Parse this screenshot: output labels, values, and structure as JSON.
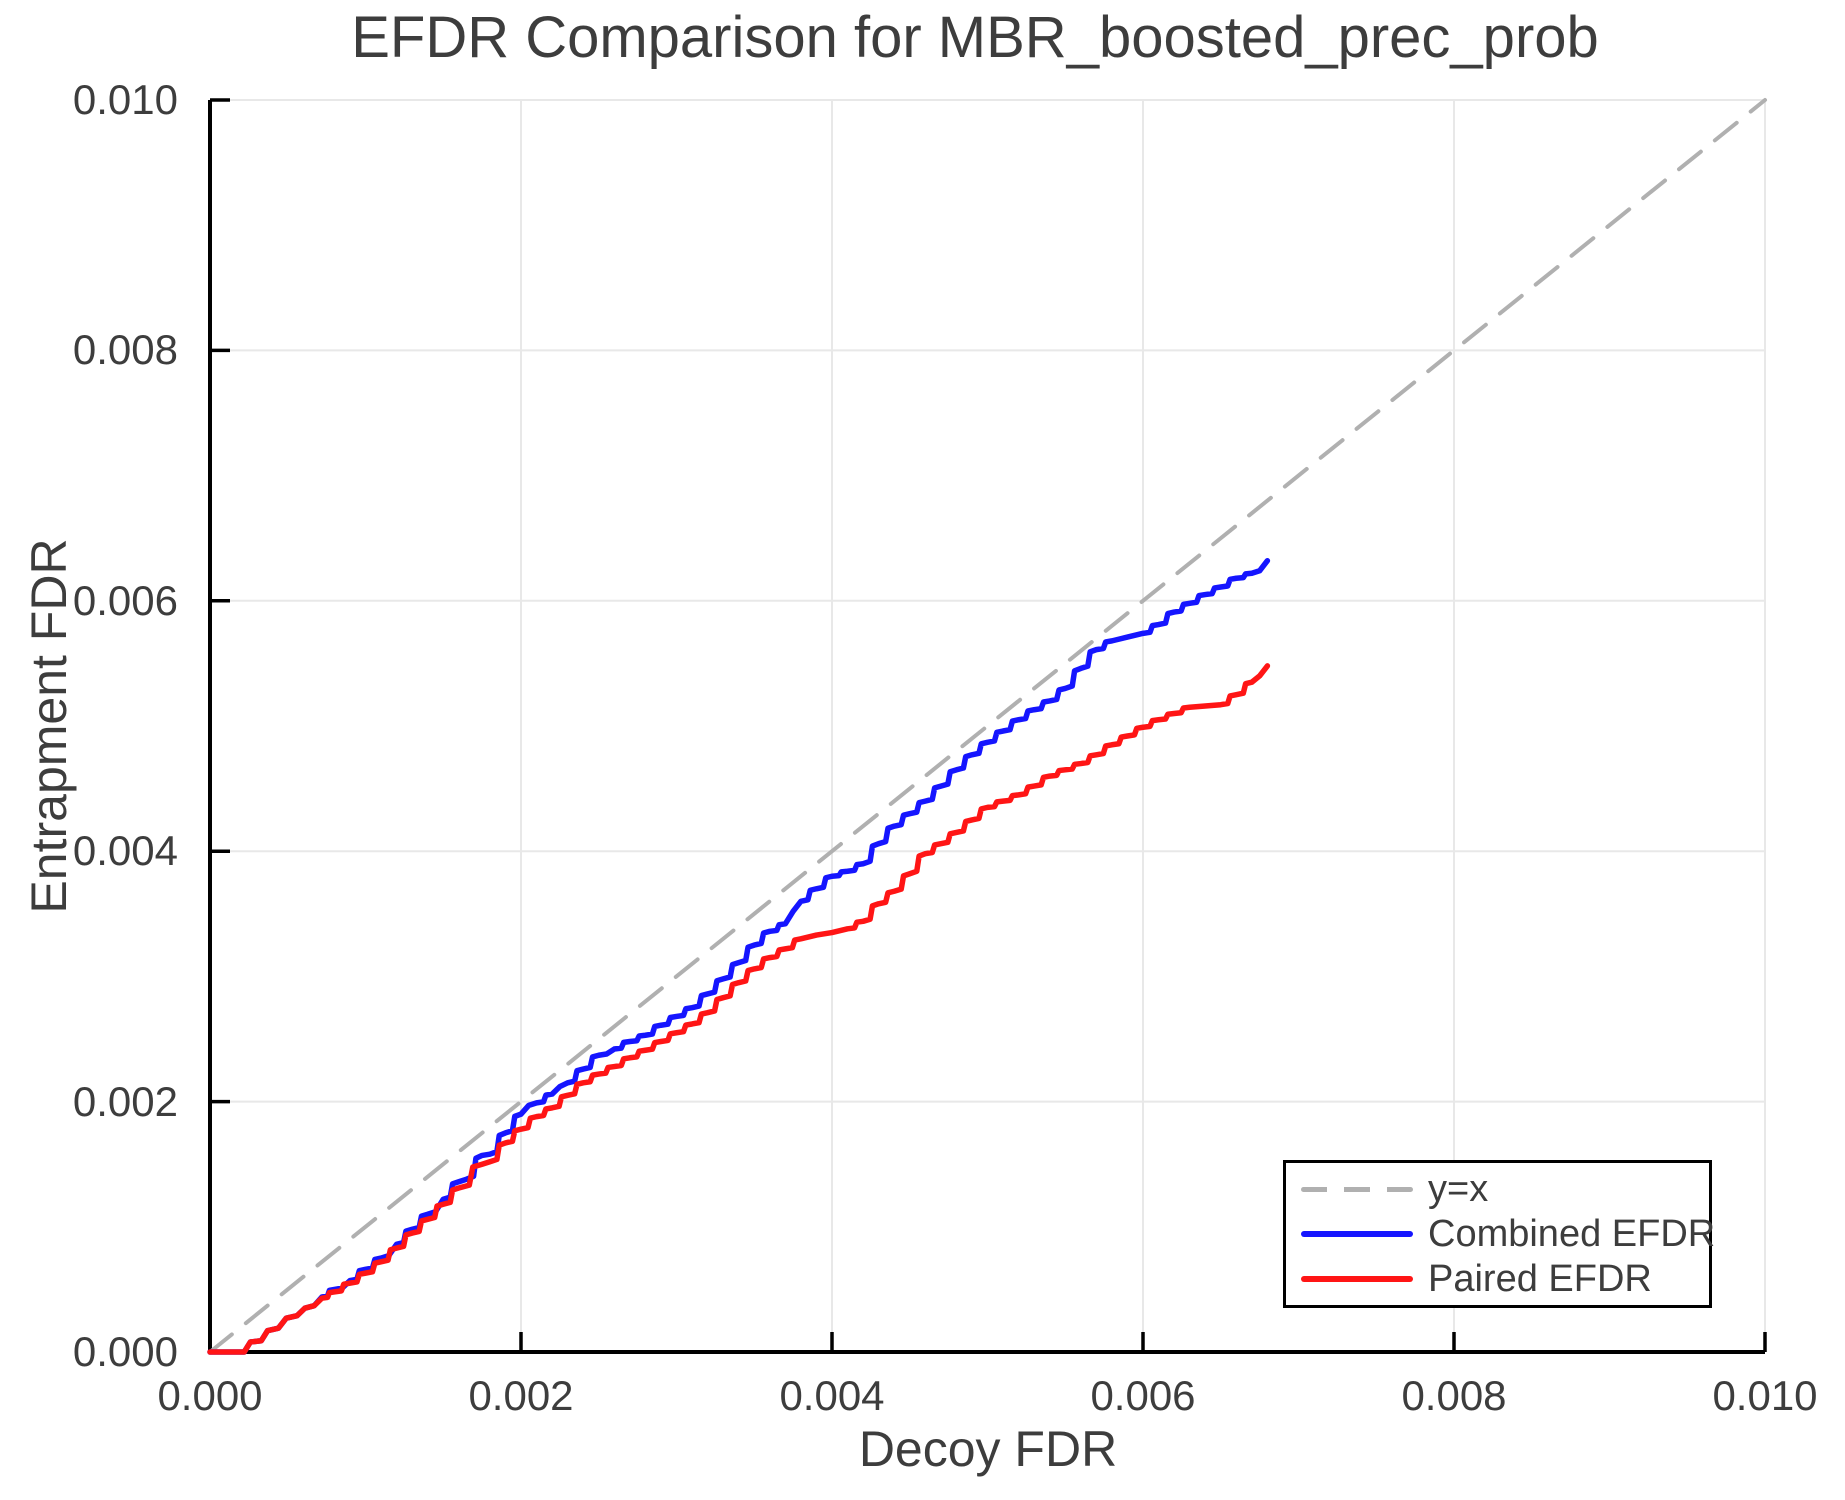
{
  "chart_data": {
    "type": "line",
    "title": "EFDR Comparison for MBR_boosted_prec_prob",
    "xlabel": "Decoy FDR",
    "ylabel": "Entrapment FDR",
    "xlim": [
      0.0,
      0.01
    ],
    "ylim": [
      0.0,
      0.01
    ],
    "grid": true,
    "x_ticks": {
      "values": [
        0.0,
        0.002,
        0.004,
        0.006,
        0.008,
        0.01
      ],
      "labels": [
        "0.000",
        "0.002",
        "0.004",
        "0.006",
        "0.008",
        "0.010"
      ]
    },
    "y_ticks": {
      "values": [
        0.0,
        0.002,
        0.004,
        0.006,
        0.008,
        0.01
      ],
      "labels": [
        "0.000",
        "0.002",
        "0.004",
        "0.006",
        "0.008",
        "0.010"
      ]
    },
    "legend": {
      "position": "lower right",
      "entries": [
        "y=x",
        "Combined EFDR",
        "Paired EFDR"
      ]
    },
    "colors": {
      "reference": "#b0b0b0",
      "combined": "#1515ff",
      "paired": "#ff1515",
      "grid": "#e8e8e8",
      "spine": "#000000",
      "text": "#3d3d3d",
      "background": "#ffffff"
    },
    "series": [
      {
        "name": "y=x",
        "role": "reference",
        "color": "#b0b0b0",
        "dashed": true,
        "points": [
          [
            0.0,
            0.0
          ],
          [
            0.01,
            0.01
          ]
        ]
      },
      {
        "name": "Combined EFDR",
        "role": "data",
        "color": "#1515ff",
        "dashed": false,
        "points": [
          [
            0.0,
            0.0
          ],
          [
            0.00022,
            0.0
          ],
          [
            0.00026,
            8e-05
          ],
          [
            0.00033,
            9e-05
          ],
          [
            0.00037,
            0.00017
          ],
          [
            0.00044,
            0.00019
          ],
          [
            0.00049,
            0.00027
          ],
          [
            0.00056,
            0.00029
          ],
          [
            0.00061,
            0.00035
          ],
          [
            0.00067,
            0.00037
          ],
          [
            0.00072,
            0.00044
          ],
          [
            0.0008,
            0.0005
          ],
          [
            0.00085,
            0.00051
          ],
          [
            0.0009,
            0.00057
          ],
          [
            0.001,
            0.00066
          ],
          [
            0.0011,
            0.00075
          ],
          [
            0.00115,
            0.00077
          ],
          [
            0.0012,
            0.00086
          ],
          [
            0.0013,
            0.00098
          ],
          [
            0.0014,
            0.0011
          ],
          [
            0.00145,
            0.00112
          ],
          [
            0.0015,
            0.00122
          ],
          [
            0.0016,
            0.00136
          ],
          [
            0.00165,
            0.00138
          ],
          [
            0.00175,
            0.00157
          ],
          [
            0.0018,
            0.00158
          ],
          [
            0.0019,
            0.00175
          ],
          [
            0.002,
            0.0019
          ],
          [
            0.00205,
            0.00197
          ],
          [
            0.0021,
            0.00199
          ],
          [
            0.0022,
            0.00206
          ],
          [
            0.00225,
            0.00212
          ],
          [
            0.0023,
            0.00215
          ],
          [
            0.0024,
            0.00226
          ],
          [
            0.0025,
            0.00237
          ],
          [
            0.00255,
            0.00238
          ],
          [
            0.0026,
            0.00242
          ],
          [
            0.0027,
            0.00248
          ],
          [
            0.0028,
            0.00253
          ],
          [
            0.0029,
            0.00261
          ],
          [
            0.003,
            0.00268
          ],
          [
            0.0031,
            0.00275
          ],
          [
            0.0032,
            0.00286
          ],
          [
            0.0033,
            0.00298
          ],
          [
            0.0034,
            0.00311
          ],
          [
            0.0035,
            0.00325
          ],
          [
            0.0036,
            0.00336
          ],
          [
            0.0037,
            0.00342
          ],
          [
            0.00375,
            0.00352
          ],
          [
            0.0038,
            0.0036
          ],
          [
            0.0039,
            0.0037
          ],
          [
            0.004,
            0.0038
          ],
          [
            0.0041,
            0.00384
          ],
          [
            0.0042,
            0.0039
          ],
          [
            0.0043,
            0.00406
          ],
          [
            0.0044,
            0.0042
          ],
          [
            0.0045,
            0.0043
          ],
          [
            0.0046,
            0.0044
          ],
          [
            0.0047,
            0.00452
          ],
          [
            0.0048,
            0.00465
          ],
          [
            0.0049,
            0.00477
          ],
          [
            0.005,
            0.00487
          ],
          [
            0.0051,
            0.00496
          ],
          [
            0.0052,
            0.00505
          ],
          [
            0.0053,
            0.00513
          ],
          [
            0.0054,
            0.0052
          ],
          [
            0.0055,
            0.0053
          ],
          [
            0.0056,
            0.00546
          ],
          [
            0.0057,
            0.00561
          ],
          [
            0.0058,
            0.00568
          ],
          [
            0.0059,
            0.00571
          ],
          [
            0.006,
            0.00574
          ],
          [
            0.0061,
            0.00581
          ],
          [
            0.0062,
            0.00591
          ],
          [
            0.0063,
            0.00598
          ],
          [
            0.0064,
            0.00605
          ],
          [
            0.0065,
            0.00611
          ],
          [
            0.0066,
            0.00618
          ],
          [
            0.0067,
            0.00622
          ],
          [
            0.00675,
            0.00624
          ],
          [
            0.0068,
            0.00632
          ]
        ]
      },
      {
        "name": "Paired EFDR",
        "role": "data",
        "color": "#ff1515",
        "dashed": false,
        "points": [
          [
            0.0,
            0.0
          ],
          [
            0.00022,
            0.0
          ],
          [
            0.00026,
            8e-05
          ],
          [
            0.00033,
            9e-05
          ],
          [
            0.00037,
            0.00017
          ],
          [
            0.00044,
            0.00019
          ],
          [
            0.00049,
            0.00027
          ],
          [
            0.00056,
            0.00029
          ],
          [
            0.00061,
            0.00035
          ],
          [
            0.00067,
            0.00037
          ],
          [
            0.00072,
            0.00043
          ],
          [
            0.0008,
            0.00048
          ],
          [
            0.0009,
            0.00055
          ],
          [
            0.001,
            0.00063
          ],
          [
            0.0011,
            0.00072
          ],
          [
            0.0012,
            0.00083
          ],
          [
            0.0013,
            0.00095
          ],
          [
            0.0014,
            0.00106
          ],
          [
            0.0015,
            0.00118
          ],
          [
            0.0016,
            0.00131
          ],
          [
            0.00175,
            0.0015
          ],
          [
            0.0018,
            0.00152
          ],
          [
            0.0019,
            0.00167
          ],
          [
            0.002,
            0.00178
          ],
          [
            0.0021,
            0.00188
          ],
          [
            0.0022,
            0.00195
          ],
          [
            0.0023,
            0.00205
          ],
          [
            0.0024,
            0.00215
          ],
          [
            0.0025,
            0.00222
          ],
          [
            0.0026,
            0.00228
          ],
          [
            0.0027,
            0.00235
          ],
          [
            0.0028,
            0.00241
          ],
          [
            0.0029,
            0.00248
          ],
          [
            0.003,
            0.00255
          ],
          [
            0.0031,
            0.00262
          ],
          [
            0.0032,
            0.00271
          ],
          [
            0.0033,
            0.00283
          ],
          [
            0.0034,
            0.00295
          ],
          [
            0.0035,
            0.00306
          ],
          [
            0.0036,
            0.00315
          ],
          [
            0.0037,
            0.00322
          ],
          [
            0.0038,
            0.0033
          ],
          [
            0.0039,
            0.00333
          ],
          [
            0.004,
            0.00335
          ],
          [
            0.0041,
            0.00338
          ],
          [
            0.0042,
            0.00344
          ],
          [
            0.0043,
            0.00358
          ],
          [
            0.0044,
            0.00368
          ],
          [
            0.0045,
            0.00382
          ],
          [
            0.0046,
            0.00398
          ],
          [
            0.0047,
            0.00406
          ],
          [
            0.0048,
            0.00415
          ],
          [
            0.0049,
            0.00425
          ],
          [
            0.005,
            0.00435
          ],
          [
            0.0051,
            0.0044
          ],
          [
            0.0052,
            0.00445
          ],
          [
            0.0053,
            0.00452
          ],
          [
            0.0054,
            0.0046
          ],
          [
            0.0055,
            0.00465
          ],
          [
            0.0056,
            0.0047
          ],
          [
            0.0057,
            0.00477
          ],
          [
            0.0058,
            0.00485
          ],
          [
            0.0059,
            0.00492
          ],
          [
            0.006,
            0.00499
          ],
          [
            0.0061,
            0.00505
          ],
          [
            0.0062,
            0.0051
          ],
          [
            0.0063,
            0.00515
          ],
          [
            0.0064,
            0.00516
          ],
          [
            0.0065,
            0.00517
          ],
          [
            0.0066,
            0.00525
          ],
          [
            0.0067,
            0.00535
          ],
          [
            0.00675,
            0.0054
          ],
          [
            0.0068,
            0.00548
          ]
        ]
      }
    ]
  }
}
